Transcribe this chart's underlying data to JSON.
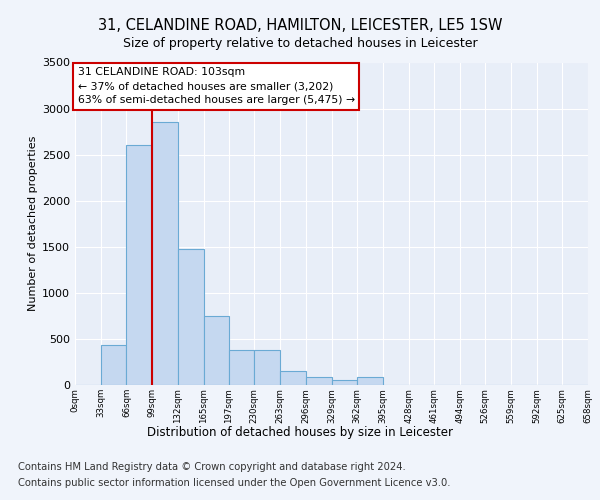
{
  "title1": "31, CELANDINE ROAD, HAMILTON, LEICESTER, LE5 1SW",
  "title2": "Size of property relative to detached houses in Leicester",
  "xlabel": "Distribution of detached houses by size in Leicester",
  "ylabel": "Number of detached properties",
  "footnote1": "Contains HM Land Registry data © Crown copyright and database right 2024.",
  "footnote2": "Contains public sector information licensed under the Open Government Licence v3.0.",
  "bin_edges": [
    0,
    33,
    66,
    99,
    132,
    165,
    197,
    230,
    263,
    296,
    329,
    362,
    395,
    428,
    461,
    494,
    526,
    559,
    592,
    625,
    658
  ],
  "bar_heights": [
    5,
    430,
    2600,
    2850,
    1480,
    750,
    375,
    375,
    150,
    90,
    50,
    90,
    5,
    0,
    0,
    0,
    0,
    0,
    0,
    0
  ],
  "bar_color": "#c5d8f0",
  "bar_edgecolor": "#6aaad4",
  "property_x": 99,
  "annotation_line0": "31 CELANDINE ROAD: 103sqm",
  "annotation_line1": "← 37% of detached houses are smaller (3,202)",
  "annotation_line2": "63% of semi-detached houses are larger (5,475) →",
  "annotation_box_fc": "#ffffff",
  "annotation_box_ec": "#cc0000",
  "vline_color": "#cc0000",
  "ylim": [
    0,
    3500
  ],
  "xlim": [
    0,
    658
  ],
  "tick_positions": [
    0,
    33,
    66,
    99,
    132,
    165,
    197,
    230,
    263,
    296,
    329,
    362,
    395,
    428,
    461,
    494,
    526,
    559,
    592,
    625,
    658
  ],
  "tick_labels": [
    "0sqm",
    "33sqm",
    "66sqm",
    "99sqm",
    "132sqm",
    "165sqm",
    "197sqm",
    "230sqm",
    "263sqm",
    "296sqm",
    "329sqm",
    "362sqm",
    "395sqm",
    "428sqm",
    "461sqm",
    "494sqm",
    "526sqm",
    "559sqm",
    "592sqm",
    "625sqm",
    "658sqm"
  ],
  "yticks": [
    0,
    500,
    1000,
    1500,
    2000,
    2500,
    3000,
    3500
  ],
  "fig_bg": "#f0f4fb",
  "axes_bg": "#e8eef8",
  "grid_color": "#ffffff"
}
